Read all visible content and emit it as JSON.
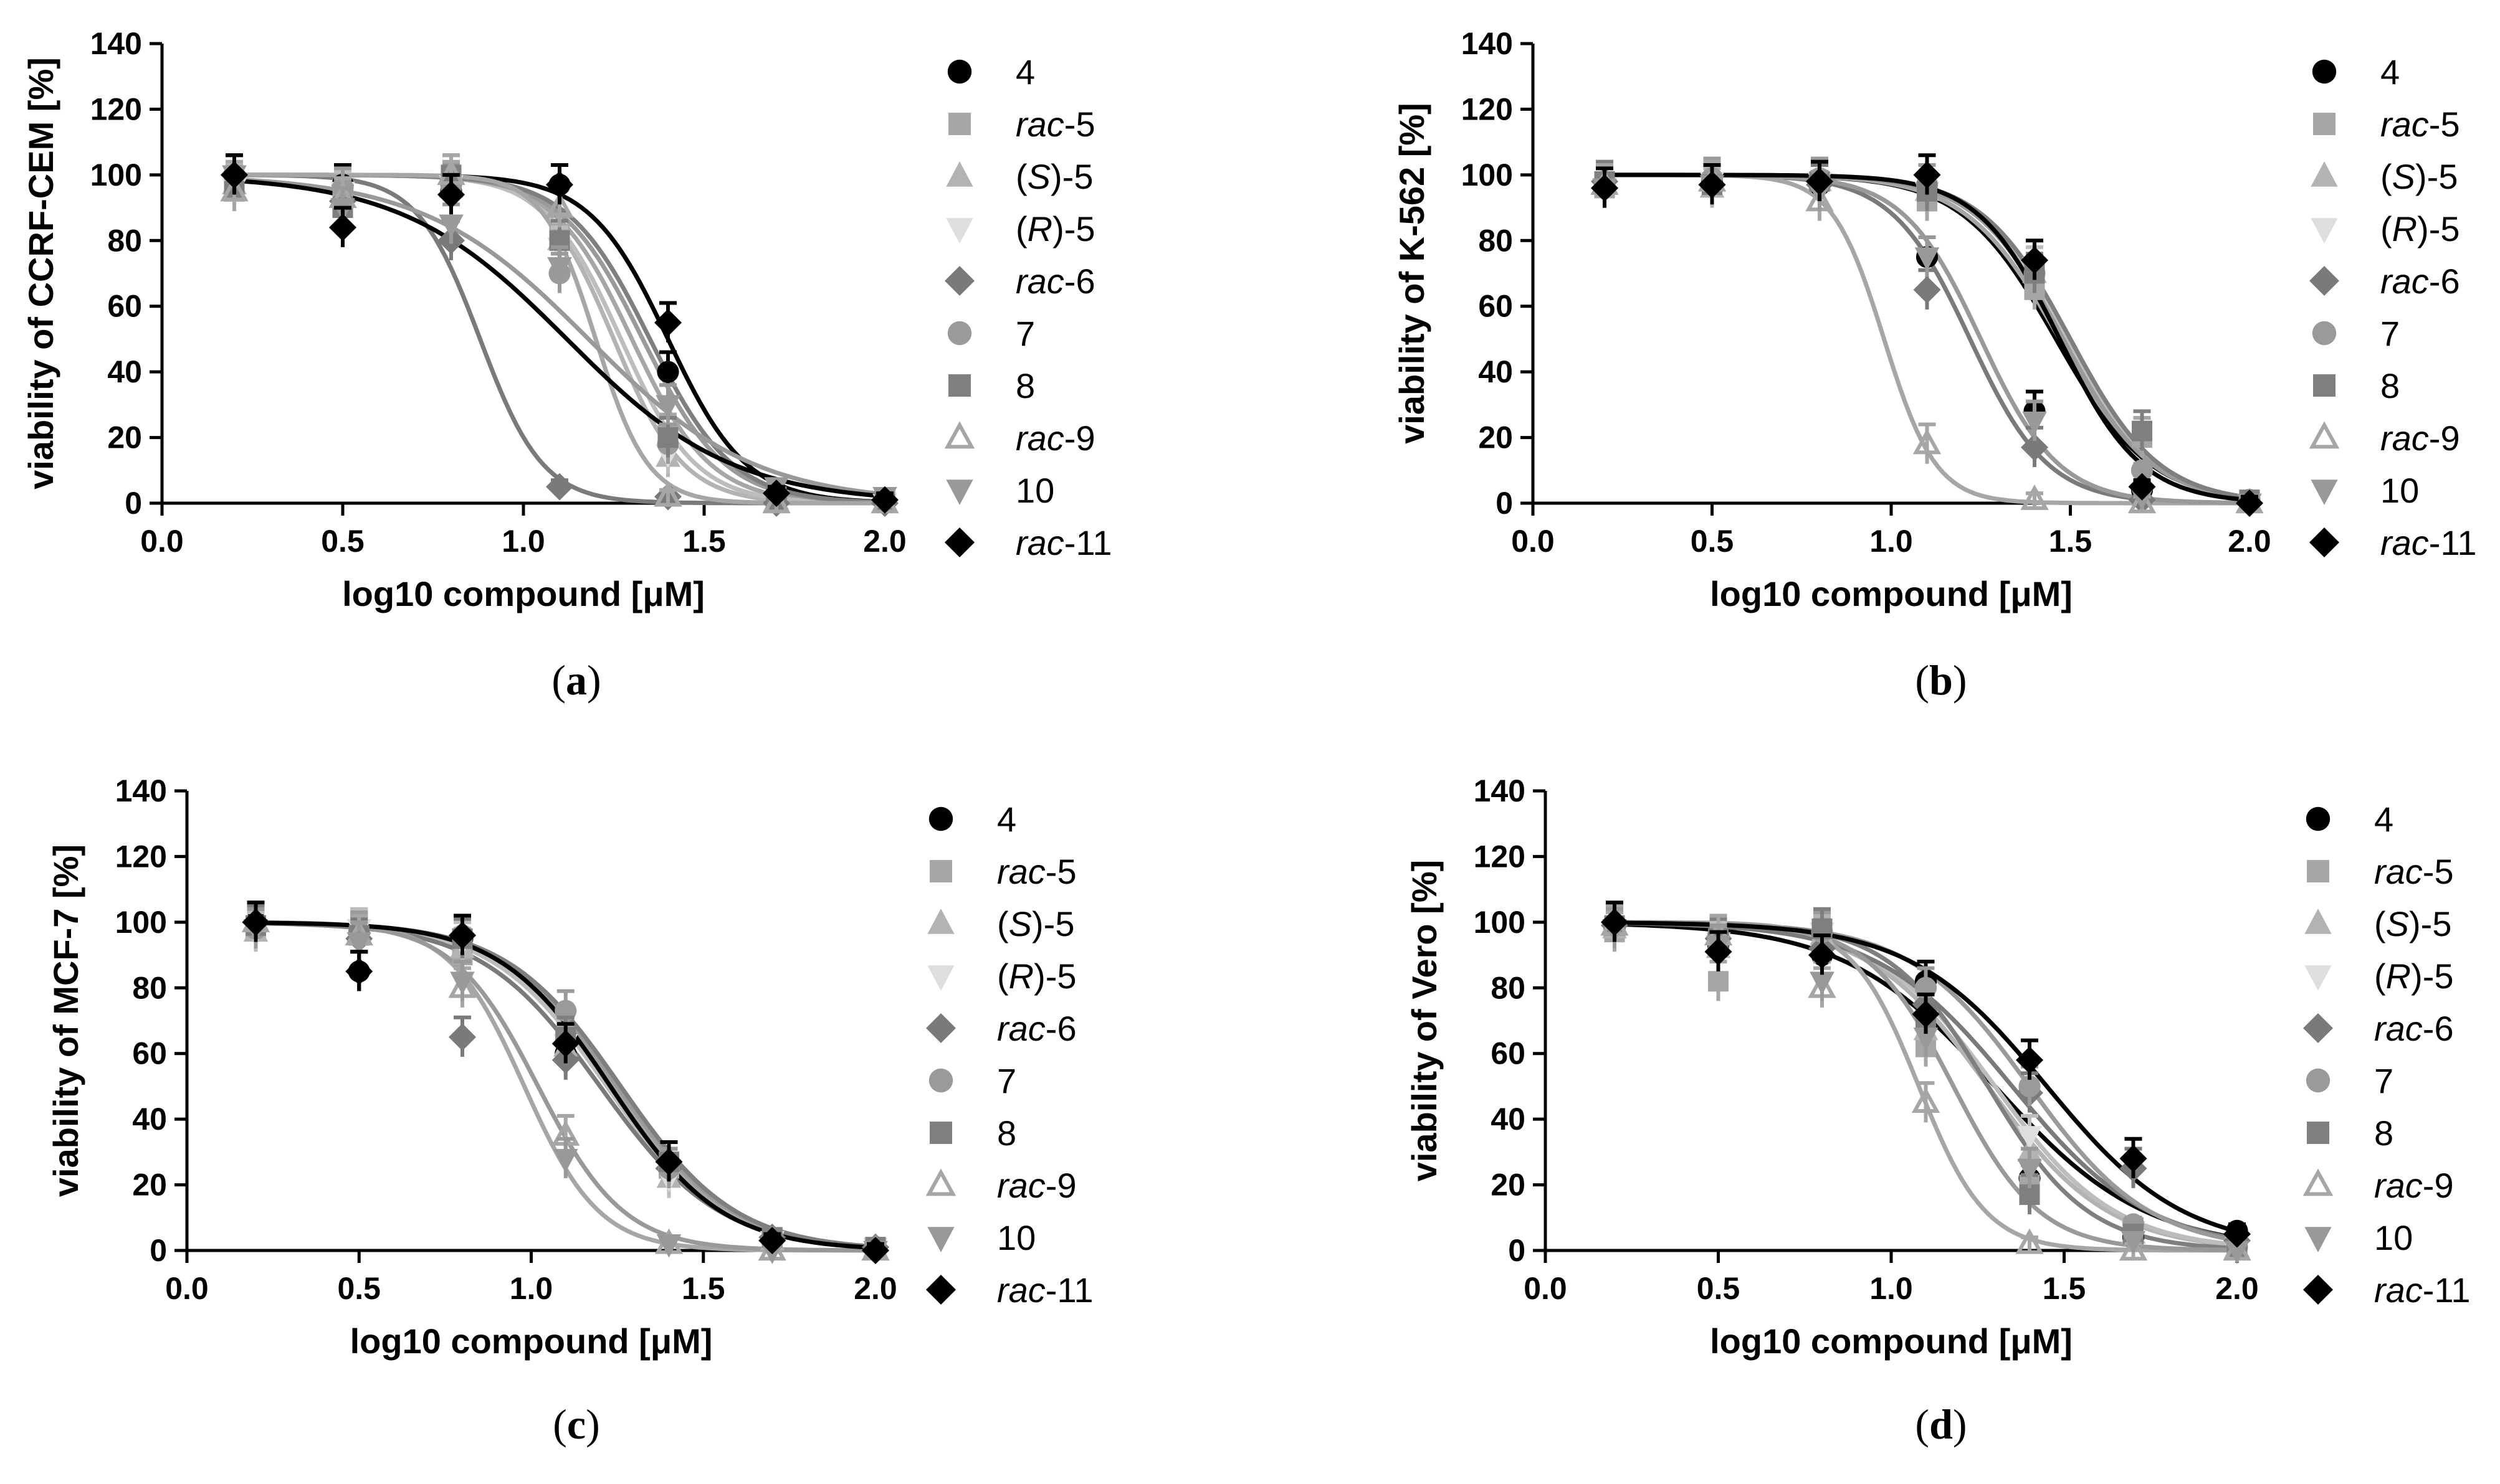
{
  "colors": {
    "black": "#000000",
    "dark_gray": "#5c5c5c",
    "mid_gray": "#808080",
    "gray": "#9a9a9a",
    "light_gray": "#b0b0b0",
    "very_light_gray": "#d4d4d4"
  },
  "legend": [
    {
      "prefix": "",
      "label": "4",
      "marker": "circle",
      "color": "#000000"
    },
    {
      "prefix": "rac",
      "label": "-5",
      "marker": "square",
      "color": "#a6a6a6"
    },
    {
      "prefix": "(",
      "italic": "S",
      "label": ")-5",
      "marker": "triangle-up",
      "color": "#b3b3b3"
    },
    {
      "prefix": "(",
      "italic": "R",
      "label": ")-5",
      "marker": "triangle-down",
      "color": "#dedede"
    },
    {
      "prefix": "rac",
      "label": "-6",
      "marker": "diamond",
      "color": "#7a7a7a"
    },
    {
      "prefix": "",
      "label": "7",
      "marker": "circle",
      "color": "#9a9a9a"
    },
    {
      "prefix": "",
      "label": "8",
      "marker": "square",
      "color": "#7f7f7f"
    },
    {
      "prefix": "rac",
      "label": "-9",
      "marker": "triangle-up-open",
      "color": "#a6a6a6"
    },
    {
      "prefix": "",
      "label": "10",
      "marker": "triangle-down",
      "color": "#999999"
    },
    {
      "prefix": "rac",
      "label": "-11",
      "marker": "diamond",
      "color": "#000000"
    }
  ],
  "chart_data": [
    {
      "type": "scatter",
      "panel": "(a)",
      "panel_letter": "a",
      "xlabel": "log10 compound [μM]",
      "ylabel": "viability of CCRF-CEM [%]",
      "xlim": [
        0.0,
        2.0
      ],
      "ylim": [
        0,
        140
      ],
      "xticks": [
        "0.0",
        "0.5",
        "1.0",
        "1.5",
        "2.0"
      ],
      "yticks": [
        "0",
        "20",
        "40",
        "60",
        "80",
        "100",
        "120",
        "140"
      ],
      "x": [
        0.2,
        0.5,
        0.8,
        1.1,
        1.4,
        1.7,
        2.0
      ],
      "series": [
        {
          "name": "4",
          "logIC50": 1.4,
          "hill": 4.0,
          "points": [
            100,
            97,
            95,
            97,
            40,
            3,
            1
          ]
        },
        {
          "name": "rac-5",
          "logIC50": 1.3,
          "hill": 4.0,
          "points": [
            98,
            92,
            98,
            82,
            21,
            2,
            1
          ]
        },
        {
          "name": "(S)-5",
          "logIC50": 1.25,
          "hill": 4.5,
          "points": [
            97,
            93,
            96,
            80,
            14,
            1,
            0
          ]
        },
        {
          "name": "(R)-5",
          "logIC50": 1.27,
          "hill": 4.2,
          "points": [
            96,
            95,
            97,
            78,
            15,
            1,
            0
          ]
        },
        {
          "name": "rac-6",
          "logIC50": 0.88,
          "hill": 5.0,
          "points": [
            100,
            92,
            80,
            5,
            2,
            0,
            0
          ]
        },
        {
          "name": "7",
          "logIC50": 1.33,
          "hill": 3.8,
          "points": [
            100,
            96,
            97,
            70,
            18,
            2,
            1
          ]
        },
        {
          "name": "8",
          "logIC50": 1.35,
          "hill": 3.8,
          "points": [
            95,
            90,
            100,
            80,
            20,
            2,
            1
          ]
        },
        {
          "name": "rac-9",
          "logIC50": 1.2,
          "hill": 6.0,
          "points": [
            95,
            93,
            100,
            90,
            2,
            0,
            0
          ]
        },
        {
          "name": "10",
          "logIC50": 1.18,
          "hill": 1.9,
          "points": [
            100,
            90,
            85,
            72,
            30,
            5,
            2
          ]
        },
        {
          "name": "rac-11",
          "logIC50": 1.12,
          "hill": 1.9,
          "points": [
            100,
            84,
            94,
            97,
            55,
            3,
            1
          ]
        }
      ]
    },
    {
      "type": "scatter",
      "panel": "(b)",
      "panel_letter": "b",
      "xlabel": "log10 compound [μM]",
      "ylabel": "viability of K-562 [%]",
      "xlim": [
        0.0,
        2.0
      ],
      "ylim": [
        0,
        140
      ],
      "xticks": [
        "0.0",
        "0.5",
        "1.0",
        "1.5",
        "2.0"
      ],
      "yticks": [
        "0",
        "20",
        "40",
        "60",
        "80",
        "100",
        "120",
        "140"
      ],
      "x": [
        0.2,
        0.5,
        0.8,
        1.1,
        1.4,
        1.7,
        2.0
      ],
      "series": [
        {
          "name": "4",
          "logIC50": 1.46,
          "hill": 3.3,
          "points": [
            97,
            98,
            97,
            75,
            28,
            4,
            1
          ]
        },
        {
          "name": "rac-5",
          "logIC50": 1.47,
          "hill": 3.3,
          "points": [
            96,
            97,
            98,
            92,
            65,
            20,
            1
          ]
        },
        {
          "name": "(S)-5",
          "logIC50": 1.48,
          "hill": 3.5,
          "points": [
            97,
            96,
            98,
            95,
            70,
            3,
            0
          ]
        },
        {
          "name": "(R)-5",
          "logIC50": 1.49,
          "hill": 3.5,
          "points": [
            96,
            98,
            98,
            95,
            72,
            3,
            0
          ]
        },
        {
          "name": "rac-6",
          "logIC50": 1.22,
          "hill": 4.0,
          "points": [
            98,
            97,
            97,
            65,
            17,
            1,
            0
          ]
        },
        {
          "name": "7",
          "logIC50": 1.48,
          "hill": 3.5,
          "points": [
            97,
            99,
            99,
            97,
            70,
            10,
            1
          ]
        },
        {
          "name": "8",
          "logIC50": 1.5,
          "hill": 3.5,
          "points": [
            98,
            97,
            98,
            95,
            70,
            22,
            1
          ]
        },
        {
          "name": "rac-9",
          "logIC50": 0.98,
          "hill": 6.0,
          "points": [
            97,
            98,
            92,
            18,
            1,
            0,
            0
          ]
        },
        {
          "name": "10",
          "logIC50": 1.25,
          "hill": 4.0,
          "points": [
            96,
            97,
            95,
            75,
            25,
            2,
            0
          ]
        },
        {
          "name": "rac-11",
          "logIC50": 1.47,
          "hill": 3.8,
          "points": [
            96,
            97,
            98,
            100,
            74,
            5,
            0
          ]
        }
      ]
    },
    {
      "type": "scatter",
      "panel": "(c)",
      "panel_letter": "c",
      "xlabel": "log10 compound [μM]",
      "ylabel": "viability of MCF-7 [%]",
      "xlim": [
        0.0,
        2.0
      ],
      "ylim": [
        0,
        140
      ],
      "xticks": [
        "0.0",
        "0.5",
        "1.0",
        "1.5",
        "2.0"
      ],
      "yticks": [
        "0",
        "20",
        "40",
        "60",
        "80",
        "100",
        "120",
        "140"
      ],
      "x": [
        0.2,
        0.5,
        0.8,
        1.1,
        1.4,
        1.7,
        2.0
      ],
      "series": [
        {
          "name": "4",
          "logIC50": 1.23,
          "hill": 2.6,
          "points": [
            100,
            85,
            95,
            60,
            25,
            3,
            1
          ]
        },
        {
          "name": "rac-5",
          "logIC50": 1.24,
          "hill": 2.6,
          "points": [
            98,
            96,
            90,
            65,
            25,
            4,
            1
          ]
        },
        {
          "name": "(S)-5",
          "logIC50": 1.22,
          "hill": 2.6,
          "points": [
            97,
            97,
            92,
            62,
            22,
            3,
            1
          ]
        },
        {
          "name": "(R)-5",
          "logIC50": 1.22,
          "hill": 2.6,
          "points": [
            97,
            98,
            94,
            63,
            22,
            3,
            1
          ]
        },
        {
          "name": "rac-6",
          "logIC50": 1.2,
          "hill": 2.5,
          "points": [
            100,
            95,
            65,
            58,
            25,
            4,
            1
          ]
        },
        {
          "name": "7",
          "logIC50": 1.25,
          "hill": 2.6,
          "points": [
            98,
            97,
            96,
            73,
            25,
            4,
            1
          ]
        },
        {
          "name": "8",
          "logIC50": 1.26,
          "hill": 2.6,
          "points": [
            99,
            96,
            95,
            65,
            27,
            4,
            1
          ]
        },
        {
          "name": "rac-9",
          "logIC50": 0.98,
          "hill": 4.0,
          "points": [
            100,
            96,
            80,
            35,
            2,
            0,
            0
          ]
        },
        {
          "name": "10",
          "logIC50": 1.02,
          "hill": 3.5,
          "points": [
            98,
            94,
            82,
            28,
            2,
            0,
            0
          ]
        },
        {
          "name": "rac-11",
          "logIC50": 1.23,
          "hill": 2.7,
          "points": [
            100,
            85,
            96,
            63,
            27,
            3,
            0
          ]
        }
      ]
    },
    {
      "type": "scatter",
      "panel": "(d)",
      "panel_letter": "d",
      "xlabel": "log10 compound [μM]",
      "ylabel": "viability of Vero [%]",
      "xlim": [
        0.0,
        2.0
      ],
      "ylim": [
        0,
        140
      ],
      "xticks": [
        "0.0",
        "0.5",
        "1.0",
        "1.5",
        "2.0"
      ],
      "yticks": [
        "0",
        "20",
        "40",
        "60",
        "80",
        "100",
        "120",
        "140"
      ],
      "x": [
        0.2,
        0.5,
        0.8,
        1.1,
        1.4,
        1.7,
        2.0
      ],
      "series": [
        {
          "name": "4",
          "logIC50": 1.3,
          "hill": 2.0,
          "points": [
            98,
            93,
            90,
            82,
            22,
            4,
            6
          ]
        },
        {
          "name": "rac-5",
          "logIC50": 1.28,
          "hill": 2.5,
          "points": [
            97,
            82,
            95,
            62,
            20,
            7,
            1
          ]
        },
        {
          "name": "(S)-5",
          "logIC50": 1.28,
          "hill": 2.5,
          "points": [
            98,
            92,
            96,
            67,
            30,
            5,
            1
          ]
        },
        {
          "name": "(R)-5",
          "logIC50": 1.3,
          "hill": 2.5,
          "points": [
            98,
            94,
            97,
            70,
            35,
            6,
            1
          ]
        },
        {
          "name": "rac-6",
          "logIC50": 1.35,
          "hill": 2.2,
          "points": [
            99,
            95,
            92,
            75,
            48,
            25,
            3
          ]
        },
        {
          "name": "7",
          "logIC50": 1.4,
          "hill": 2.5,
          "points": [
            99,
            96,
            97,
            80,
            50,
            8,
            1
          ]
        },
        {
          "name": "8",
          "logIC50": 1.28,
          "hill": 3.0,
          "points": [
            99,
            95,
            98,
            70,
            17,
            5,
            1
          ]
        },
        {
          "name": "rac-9",
          "logIC50": 1.08,
          "hill": 4.5,
          "points": [
            99,
            96,
            80,
            45,
            2,
            0,
            0
          ]
        },
        {
          "name": "10",
          "logIC50": 1.18,
          "hill": 3.5,
          "points": [
            98,
            93,
            82,
            65,
            25,
            3,
            0
          ]
        },
        {
          "name": "rac-11",
          "logIC50": 1.45,
          "hill": 2.2,
          "points": [
            100,
            91,
            90,
            72,
            58,
            28,
            5
          ]
        }
      ]
    }
  ]
}
